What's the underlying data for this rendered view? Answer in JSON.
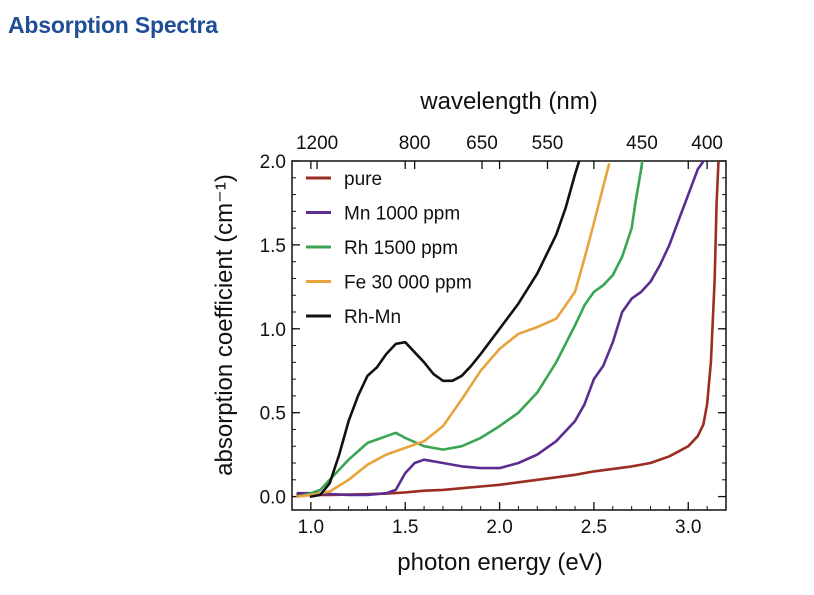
{
  "page": {
    "title": "Absorption Spectra"
  },
  "chart_data": {
    "type": "line",
    "xlabel": "photon energy (eV)",
    "ylabel": "absorption coefficient (cm⁻¹)",
    "top_axis_label": "wavelength (nm)",
    "xlim": [
      0.9,
      3.2
    ],
    "ylim": [
      -0.08,
      2.0
    ],
    "x_ticks": [
      "1.0",
      "1.5",
      "2.0",
      "2.5",
      "3.0"
    ],
    "y_ticks": [
      "0.0",
      "0.5",
      "1.0",
      "1.5",
      "2.0"
    ],
    "top_ticks": [
      {
        "label": "1200",
        "x": 1.033
      },
      {
        "label": "800",
        "x": 1.55
      },
      {
        "label": "650",
        "x": 1.907
      },
      {
        "label": "550",
        "x": 2.254
      },
      {
        "label": "450",
        "x": 2.755
      },
      {
        "label": "400",
        "x": 3.1
      }
    ],
    "grid": false,
    "legend_position": "top-left",
    "series": [
      {
        "name": "pure",
        "color": "#9a2e22",
        "x": [
          0.93,
          1.0,
          1.1,
          1.2,
          1.3,
          1.4,
          1.5,
          1.6,
          1.7,
          1.8,
          1.9,
          2.0,
          2.1,
          2.2,
          2.3,
          2.4,
          2.5,
          2.6,
          2.7,
          2.8,
          2.9,
          2.95,
          3.0,
          3.05,
          3.08,
          3.1,
          3.12,
          3.14,
          3.15,
          3.16
        ],
        "y": [
          0.01,
          0.01,
          0.01,
          0.012,
          0.014,
          0.018,
          0.025,
          0.035,
          0.04,
          0.05,
          0.06,
          0.07,
          0.085,
          0.1,
          0.115,
          0.13,
          0.15,
          0.165,
          0.18,
          0.2,
          0.24,
          0.27,
          0.3,
          0.36,
          0.43,
          0.55,
          0.8,
          1.3,
          1.75,
          2.0
        ]
      },
      {
        "name": "Mn 1000 ppm",
        "color": "#5c2d91",
        "x": [
          0.93,
          1.0,
          1.1,
          1.2,
          1.3,
          1.4,
          1.45,
          1.5,
          1.55,
          1.6,
          1.7,
          1.8,
          1.9,
          2.0,
          2.1,
          2.2,
          2.3,
          2.4,
          2.45,
          2.5,
          2.55,
          2.6,
          2.65,
          2.7,
          2.75,
          2.8,
          2.85,
          2.9,
          2.95,
          3.0,
          3.05,
          3.1
        ],
        "y": [
          0.02,
          0.02,
          0.015,
          0.01,
          0.01,
          0.02,
          0.04,
          0.14,
          0.2,
          0.22,
          0.2,
          0.18,
          0.17,
          0.17,
          0.2,
          0.25,
          0.33,
          0.45,
          0.55,
          0.7,
          0.78,
          0.92,
          1.1,
          1.18,
          1.22,
          1.28,
          1.38,
          1.5,
          1.65,
          1.8,
          1.95,
          2.03
        ]
      },
      {
        "name": "Rh 1500 ppm",
        "color": "#3aa552",
        "x": [
          0.93,
          1.0,
          1.05,
          1.1,
          1.2,
          1.3,
          1.4,
          1.45,
          1.5,
          1.6,
          1.7,
          1.8,
          1.9,
          2.0,
          2.1,
          2.2,
          2.3,
          2.4,
          2.45,
          2.5,
          2.55,
          2.6,
          2.65,
          2.7,
          2.72,
          2.75,
          2.76
        ],
        "y": [
          0.0,
          0.02,
          0.04,
          0.1,
          0.22,
          0.32,
          0.36,
          0.38,
          0.35,
          0.3,
          0.28,
          0.3,
          0.35,
          0.42,
          0.5,
          0.62,
          0.8,
          1.02,
          1.14,
          1.22,
          1.26,
          1.32,
          1.43,
          1.6,
          1.75,
          1.95,
          2.03
        ]
      },
      {
        "name": "Fe 30 000 ppm",
        "color": "#e8a43c",
        "x": [
          0.93,
          1.0,
          1.1,
          1.2,
          1.3,
          1.4,
          1.5,
          1.6,
          1.7,
          1.8,
          1.9,
          2.0,
          2.1,
          2.2,
          2.3,
          2.4,
          2.45,
          2.5,
          2.55,
          2.58
        ],
        "y": [
          0.0,
          0.01,
          0.03,
          0.1,
          0.19,
          0.25,
          0.29,
          0.33,
          0.42,
          0.58,
          0.75,
          0.88,
          0.97,
          1.01,
          1.06,
          1.22,
          1.42,
          1.63,
          1.85,
          1.98
        ]
      },
      {
        "name": "Rh-Mn",
        "color": "#111111",
        "x": [
          1.0,
          1.05,
          1.1,
          1.15,
          1.2,
          1.25,
          1.3,
          1.35,
          1.4,
          1.45,
          1.5,
          1.55,
          1.6,
          1.65,
          1.7,
          1.75,
          1.8,
          1.85,
          1.9,
          2.0,
          2.1,
          2.2,
          2.3,
          2.35,
          2.4,
          2.43
        ],
        "y": [
          0.0,
          0.01,
          0.08,
          0.25,
          0.45,
          0.6,
          0.72,
          0.77,
          0.85,
          0.91,
          0.92,
          0.86,
          0.8,
          0.73,
          0.69,
          0.69,
          0.72,
          0.78,
          0.85,
          1.0,
          1.15,
          1.33,
          1.56,
          1.72,
          1.92,
          2.03
        ]
      }
    ]
  }
}
